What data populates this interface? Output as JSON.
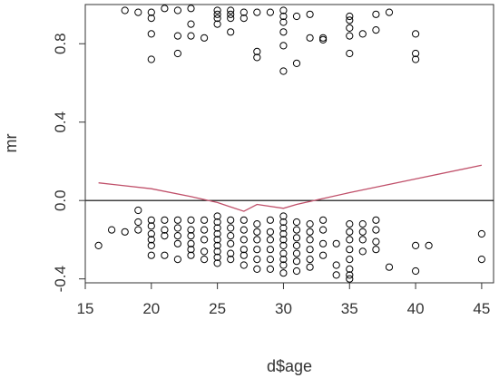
{
  "chart_data": {
    "type": "scatter",
    "title": "",
    "xlabel": "d$age",
    "ylabel": "mr",
    "xlim": [
      15,
      45.9
    ],
    "ylim": [
      -0.42,
      1.0
    ],
    "xticks": [
      15,
      20,
      25,
      30,
      35,
      40,
      45
    ],
    "xtick_labels": [
      "15",
      "20",
      "25",
      "30",
      "35",
      "40",
      "45"
    ],
    "yticks": [
      -0.4,
      0.0,
      0.4,
      0.8
    ],
    "ytick_labels": [
      "-0.4",
      "0.0",
      "0.4",
      "0.8"
    ],
    "grid": false,
    "reference_line": {
      "y": 0.0,
      "color": "#000000"
    },
    "colors": {
      "points": "#000000",
      "smooth": "#c0506a",
      "axes": "#333333"
    },
    "series": [
      {
        "type": "scatter",
        "marker": "open-circle",
        "points": [
          [
            16,
            -0.23
          ],
          [
            17,
            -0.15
          ],
          [
            18,
            -0.16
          ],
          [
            18,
            0.97
          ],
          [
            19,
            -0.05
          ],
          [
            19,
            -0.11
          ],
          [
            19,
            -0.15
          ],
          [
            19,
            0.96
          ],
          [
            20,
            -0.1
          ],
          [
            20,
            -0.13
          ],
          [
            20,
            -0.17
          ],
          [
            20,
            -0.2
          ],
          [
            20,
            -0.23
          ],
          [
            20,
            -0.28
          ],
          [
            20,
            0.96
          ],
          [
            20,
            0.93
          ],
          [
            20,
            0.85
          ],
          [
            20,
            0.72
          ],
          [
            21,
            -0.1
          ],
          [
            21,
            -0.15
          ],
          [
            21,
            -0.18
          ],
          [
            21,
            -0.28
          ],
          [
            21,
            0.98
          ],
          [
            22,
            -0.1
          ],
          [
            22,
            -0.14
          ],
          [
            22,
            -0.18
          ],
          [
            22,
            -0.22
          ],
          [
            22,
            -0.3
          ],
          [
            22,
            0.97
          ],
          [
            22,
            0.84
          ],
          [
            22,
            0.75
          ],
          [
            23,
            -0.1
          ],
          [
            23,
            -0.15
          ],
          [
            23,
            -0.18
          ],
          [
            23,
            -0.22
          ],
          [
            23,
            -0.25
          ],
          [
            23,
            -0.28
          ],
          [
            23,
            0.98
          ],
          [
            23,
            0.9
          ],
          [
            23,
            0.84
          ],
          [
            24,
            -0.1
          ],
          [
            24,
            -0.15
          ],
          [
            24,
            -0.2
          ],
          [
            24,
            -0.26
          ],
          [
            24,
            -0.3
          ],
          [
            24,
            0.83
          ],
          [
            25,
            -0.08
          ],
          [
            25,
            -0.11
          ],
          [
            25,
            -0.14
          ],
          [
            25,
            -0.17
          ],
          [
            25,
            -0.2
          ],
          [
            25,
            -0.23
          ],
          [
            25,
            -0.26
          ],
          [
            25,
            -0.29
          ],
          [
            25,
            -0.32
          ],
          [
            25,
            0.97
          ],
          [
            25,
            0.95
          ],
          [
            25,
            0.93
          ],
          [
            25,
            0.9
          ],
          [
            26,
            -0.1
          ],
          [
            26,
            -0.14
          ],
          [
            26,
            -0.18
          ],
          [
            26,
            -0.22
          ],
          [
            26,
            -0.27
          ],
          [
            26,
            -0.3
          ],
          [
            26,
            0.97
          ],
          [
            26,
            0.95
          ],
          [
            26,
            0.93
          ],
          [
            26,
            0.86
          ],
          [
            27,
            -0.1
          ],
          [
            27,
            -0.15
          ],
          [
            27,
            -0.2
          ],
          [
            27,
            -0.25
          ],
          [
            27,
            -0.28
          ],
          [
            27,
            -0.33
          ],
          [
            27,
            0.96
          ],
          [
            27,
            0.93
          ],
          [
            28,
            -0.12
          ],
          [
            28,
            -0.16
          ],
          [
            28,
            -0.2
          ],
          [
            28,
            -0.25
          ],
          [
            28,
            -0.3
          ],
          [
            28,
            -0.35
          ],
          [
            28,
            0.96
          ],
          [
            28,
            0.76
          ],
          [
            28,
            0.73
          ],
          [
            29,
            -0.1
          ],
          [
            29,
            -0.16
          ],
          [
            29,
            -0.2
          ],
          [
            29,
            -0.25
          ],
          [
            29,
            -0.3
          ],
          [
            29,
            -0.35
          ],
          [
            29,
            0.96
          ],
          [
            30,
            -0.08
          ],
          [
            30,
            -0.11
          ],
          [
            30,
            -0.14
          ],
          [
            30,
            -0.17
          ],
          [
            30,
            -0.2
          ],
          [
            30,
            -0.23
          ],
          [
            30,
            -0.27
          ],
          [
            30,
            -0.3
          ],
          [
            30,
            -0.33
          ],
          [
            30,
            -0.37
          ],
          [
            30,
            0.97
          ],
          [
            30,
            0.94
          ],
          [
            30,
            0.91
          ],
          [
            30,
            0.86
          ],
          [
            30,
            0.79
          ],
          [
            30,
            0.66
          ],
          [
            31,
            -0.11
          ],
          [
            31,
            -0.15
          ],
          [
            31,
            -0.19
          ],
          [
            31,
            -0.23
          ],
          [
            31,
            -0.27
          ],
          [
            31,
            -0.31
          ],
          [
            31,
            -0.36
          ],
          [
            31,
            0.94
          ],
          [
            31,
            0.7
          ],
          [
            32,
            -0.12
          ],
          [
            32,
            -0.16
          ],
          [
            32,
            -0.2
          ],
          [
            32,
            -0.25
          ],
          [
            32,
            -0.3
          ],
          [
            32,
            -0.34
          ],
          [
            32,
            0.95
          ],
          [
            32,
            0.83
          ],
          [
            33,
            -0.1
          ],
          [
            33,
            -0.15
          ],
          [
            33,
            -0.22
          ],
          [
            33,
            -0.28
          ],
          [
            33,
            0.83
          ],
          [
            33,
            0.82
          ],
          [
            34,
            -0.22
          ],
          [
            34,
            -0.33
          ],
          [
            34,
            -0.38
          ],
          [
            35,
            -0.12
          ],
          [
            35,
            -0.16
          ],
          [
            35,
            -0.2
          ],
          [
            35,
            -0.25
          ],
          [
            35,
            -0.3
          ],
          [
            35,
            -0.35
          ],
          [
            35,
            -0.38
          ],
          [
            35,
            -0.4
          ],
          [
            35,
            0.94
          ],
          [
            35,
            0.92
          ],
          [
            35,
            0.88
          ],
          [
            35,
            0.84
          ],
          [
            35,
            0.75
          ],
          [
            36,
            -0.12
          ],
          [
            36,
            -0.16
          ],
          [
            36,
            -0.2
          ],
          [
            36,
            -0.26
          ],
          [
            36,
            0.85
          ],
          [
            37,
            -0.1
          ],
          [
            37,
            -0.15
          ],
          [
            37,
            -0.21
          ],
          [
            37,
            -0.25
          ],
          [
            37,
            0.95
          ],
          [
            37,
            0.87
          ],
          [
            38,
            -0.34
          ],
          [
            38,
            0.96
          ],
          [
            40,
            -0.23
          ],
          [
            40,
            -0.36
          ],
          [
            40,
            0.85
          ],
          [
            40,
            0.75
          ],
          [
            40,
            0.72
          ],
          [
            41,
            -0.23
          ],
          [
            45,
            -0.17
          ],
          [
            45,
            -0.3
          ]
        ]
      },
      {
        "type": "line",
        "name": "smooth",
        "points": [
          [
            16,
            0.09
          ],
          [
            20,
            0.06
          ],
          [
            23,
            0.02
          ],
          [
            25,
            -0.01
          ],
          [
            27,
            -0.055
          ],
          [
            28,
            -0.02
          ],
          [
            30,
            -0.04
          ],
          [
            31,
            -0.02
          ],
          [
            33,
            0.01
          ],
          [
            35,
            0.04
          ],
          [
            40,
            0.11
          ],
          [
            45,
            0.18
          ]
        ]
      }
    ]
  }
}
